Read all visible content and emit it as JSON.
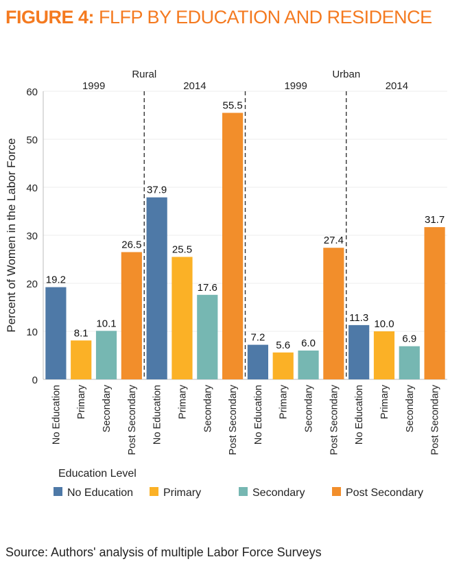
{
  "figure": {
    "label": "FIGURE 4:",
    "title": "FLFP BY EDUCATION AND RESIDENCE",
    "source": "Source: Authors' analysis of multiple Labor Force Surveys"
  },
  "colors": {
    "accent": "#f47a20",
    "No Education": "#4e79a7",
    "Primary": "#fbb126",
    "Secondary": "#76b7b2",
    "Post Secondary": "#f28e2b"
  },
  "chart_data": {
    "type": "bar",
    "ylabel": "Percent of Women in the Labor Force",
    "ylim": [
      0,
      60
    ],
    "yticks": [
      0,
      10,
      20,
      30,
      40,
      50,
      60
    ],
    "gridlines": true,
    "legend_title": "Education Level",
    "legend_position": "bottom",
    "categories": [
      "No Education",
      "Primary",
      "Secondary",
      "Post Secondary"
    ],
    "groups": [
      {
        "residence": "Rural",
        "years": [
          {
            "year": "1999",
            "values": [
              19.2,
              8.1,
              10.1,
              26.5
            ]
          },
          {
            "year": "2014",
            "values": [
              37.9,
              25.5,
              17.6,
              55.5
            ]
          }
        ]
      },
      {
        "residence": "Urban",
        "years": [
          {
            "year": "1999",
            "values": [
              7.2,
              5.6,
              6.0,
              27.4
            ]
          },
          {
            "year": "2014",
            "values": [
              11.3,
              10.0,
              6.9,
              31.7
            ]
          }
        ]
      }
    ]
  }
}
